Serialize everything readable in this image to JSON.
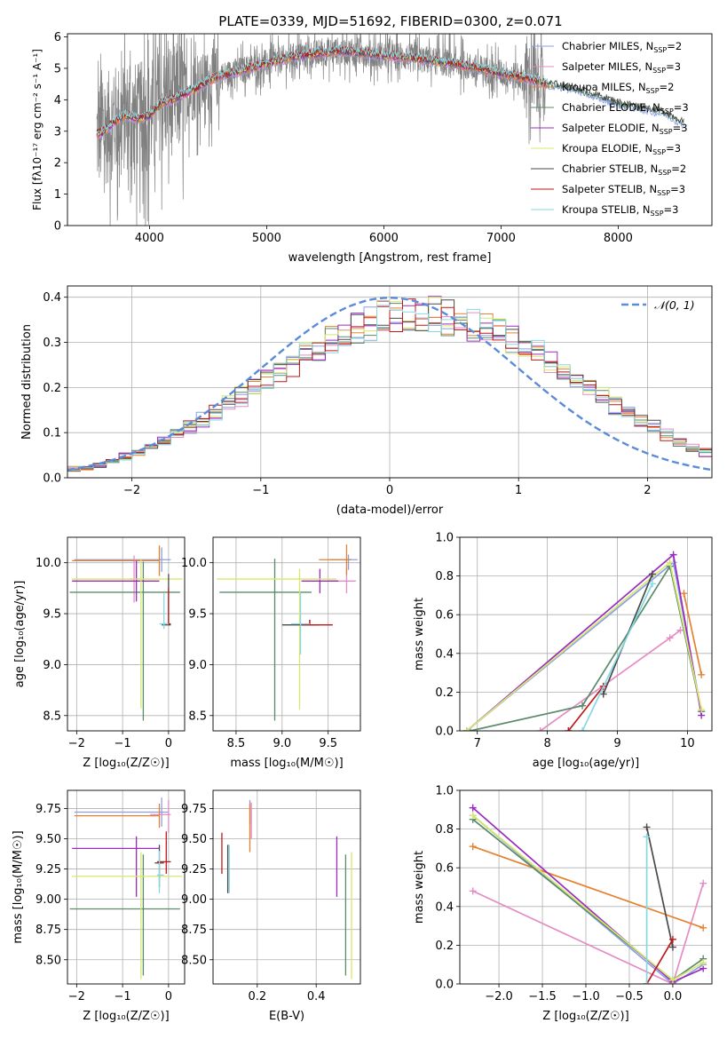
{
  "figure": {
    "title": "PLATE=0339, MJD=51692, FIBERID=0300, z=0.071"
  },
  "colors": {
    "Chabrier MILES": "#8a9fe6",
    "Salpeter MILES": "#e58cc4",
    "Kroupa MILES": "#e5812f",
    "Chabrier ELODIE": "#5a8a6a",
    "Salpeter ELODIE": "#9b2bbf",
    "Kroupa ELODIE": "#d6e86b",
    "Chabrier STELIB": "#4a4a4a",
    "Salpeter STELIB": "#c01818",
    "Kroupa STELIB": "#86d8e2",
    "normal": "#5b8bd9",
    "data": "#808080"
  },
  "chart_data": [
    {
      "id": "spectrum",
      "type": "line",
      "xlabel": "wavelength [Angstrom, rest frame]",
      "ylabel": "Flux [fλ10⁻¹⁷ erg cm⁻² s⁻¹ A⁻¹]",
      "xlim": [
        3300,
        8800
      ],
      "ylim": [
        0,
        6.1
      ],
      "xticks": [
        "4000",
        "5000",
        "6000",
        "7000",
        "8000"
      ],
      "yticks": [
        "0",
        "1",
        "2",
        "3",
        "4",
        "5",
        "6"
      ],
      "legend": [
        "Chabrier MILES, N_SSP=2",
        "Salpeter MILES, N_SSP=3",
        "Kroupa MILES, N_SSP=2",
        "Chabrier ELODIE, N_SSP=3",
        "Salpeter ELODIE, N_SSP=3",
        "Kroupa ELODIE, N_SSP=3",
        "Chabrier STELIB, N_SSP=2",
        "Salpeter STELIB, N_SSP=3",
        "Kroupa STELIB, N_SSP=3"
      ],
      "legend_placement": "right",
      "model_continuum": {
        "x": [
          3550,
          3600,
          3700,
          3800,
          3900,
          4000,
          4100,
          4200,
          4300,
          4400,
          4500,
          4600,
          4800,
          5000,
          5200,
          5400,
          5600,
          5800,
          6000,
          6200,
          6400,
          6600,
          6800,
          7000,
          7200,
          7400,
          7600,
          7800,
          8000,
          8200,
          8400,
          8560
        ],
        "y": [
          2.9,
          2.95,
          3.3,
          3.5,
          3.4,
          3.5,
          3.9,
          4.0,
          4.2,
          4.35,
          4.6,
          4.75,
          4.95,
          5.15,
          5.35,
          5.45,
          5.55,
          5.5,
          5.4,
          5.35,
          5.25,
          5.15,
          5.0,
          4.85,
          4.7,
          4.5,
          4.4,
          4.15,
          3.9,
          3.75,
          3.6,
          3.25
        ]
      }
    },
    {
      "id": "residuals",
      "type": "line",
      "xlabel": "(data-model)/error",
      "ylabel": "Normed distribution",
      "xlim": [
        -2.5,
        2.5
      ],
      "ylim": [
        0,
        0.425
      ],
      "xticks": [
        "−2",
        "−1",
        "0",
        "1",
        "2"
      ],
      "yticks": [
        "0.0",
        "0.1",
        "0.2",
        "0.3",
        "0.4"
      ],
      "legend": [
        "𝒩(0, 1)"
      ],
      "legend_placement": "top-right",
      "bin_width": 0.1,
      "histogram_base": [
        0.02,
        0.022,
        0.028,
        0.036,
        0.046,
        0.057,
        0.068,
        0.081,
        0.096,
        0.112,
        0.128,
        0.145,
        0.162,
        0.18,
        0.199,
        0.218,
        0.237,
        0.256,
        0.274,
        0.292,
        0.308,
        0.322,
        0.334,
        0.344,
        0.352,
        0.357,
        0.36,
        0.361,
        0.36,
        0.357,
        0.352,
        0.344,
        0.334,
        0.322,
        0.308,
        0.292,
        0.274,
        0.256,
        0.237,
        0.218,
        0.199,
        0.18,
        0.162,
        0.145,
        0.128,
        0.112,
        0.096,
        0.081,
        0.068,
        0.057
      ]
    },
    {
      "id": "age-vs-Z",
      "type": "errorbar",
      "xlabel": "Z [log₁₀(Z/Z☉)]",
      "ylabel": "age  [log₁₀(age/yr)]",
      "xlim": [
        -2.2,
        0.35
      ],
      "ylim": [
        8.35,
        10.25
      ],
      "xticks": [
        "−2",
        "−1",
        "0"
      ],
      "yticks": [
        "8.5",
        "9.0",
        "9.5",
        "10.0"
      ],
      "bars": [
        {
          "x": -0.15,
          "y": 10.03,
          "xerr": [
            1.9,
            0.2
          ],
          "yerr": [
            0.12,
            0.12
          ]
        },
        {
          "x": -0.75,
          "y": 9.84,
          "xerr": [
            0.1,
            0.1
          ],
          "yerr": [
            0.23,
            0.23
          ]
        },
        {
          "x": -0.2,
          "y": 10.02,
          "xerr": [
            1.9,
            0.0
          ],
          "yerr": [
            0.15,
            0.15
          ]
        },
        {
          "x": -0.55,
          "y": 9.71,
          "xerr": [
            1.6,
            0.8
          ],
          "yerr": [
            1.26,
            0.3
          ]
        },
        {
          "x": -0.7,
          "y": 9.82,
          "xerr": [
            1.4,
            0.5
          ],
          "yerr": [
            0.2,
            0.2
          ]
        },
        {
          "x": -0.6,
          "y": 9.84,
          "xerr": [
            1.5,
            0.9
          ],
          "yerr": [
            1.27,
            0.2
          ]
        },
        {
          "x": 0.0,
          "y": 9.39,
          "xerr": [
            0.15,
            0.05
          ],
          "yerr": [
            0.0,
            0.5
          ]
        },
        {
          "x": 0.0,
          "y": 9.4,
          "xerr": [
            0.1,
            0.05
          ],
          "yerr": [
            0.0,
            0.35
          ]
        },
        {
          "x": -0.1,
          "y": 9.4,
          "xerr": [
            0.1,
            0.1
          ],
          "yerr": [
            0.05,
            0.3
          ]
        }
      ]
    },
    {
      "id": "age-vs-mass",
      "type": "errorbar",
      "xlabel": "mass [log₁₀(M/M☉)]",
      "ylabel": "",
      "xlim": [
        8.25,
        9.85
      ],
      "ylim": [
        8.35,
        10.25
      ],
      "xticks": [
        "8.5",
        "9.0",
        "9.5"
      ],
      "yticks": [
        "8.5",
        "9.0",
        "9.5",
        "10.0"
      ],
      "bars": [
        {
          "x": 9.72,
          "y": 10.03,
          "xerr": [
            0.2,
            0.1
          ],
          "yerr": [
            0.1,
            0.05
          ]
        },
        {
          "x": 9.7,
          "y": 9.82,
          "xerr": [
            0.2,
            0.1
          ],
          "yerr": [
            0.12,
            0.12
          ]
        },
        {
          "x": 9.7,
          "y": 10.03,
          "xerr": [
            0.3,
            0.05
          ],
          "yerr": [
            0.15,
            0.15
          ]
        },
        {
          "x": 8.92,
          "y": 9.71,
          "xerr": [
            0.6,
            0.4
          ],
          "yerr": [
            1.26,
            0.33
          ]
        },
        {
          "x": 9.41,
          "y": 9.82,
          "xerr": [
            0.2,
            0.2
          ],
          "yerr": [
            0.12,
            0.12
          ]
        },
        {
          "x": 9.19,
          "y": 9.84,
          "xerr": [
            0.9,
            0.4
          ],
          "yerr": [
            1.28,
            0.1
          ]
        },
        {
          "x": 9.3,
          "y": 9.39,
          "xerr": [
            0.3,
            0.1
          ],
          "yerr": [
            0.0,
            0.05
          ]
        },
        {
          "x": 9.3,
          "y": 9.39,
          "xerr": [
            0.1,
            0.25
          ],
          "yerr": [
            0.0,
            0.05
          ]
        },
        {
          "x": 9.2,
          "y": 9.4,
          "xerr": [
            0.1,
            0.1
          ],
          "yerr": [
            0.3,
            0.3
          ]
        }
      ]
    },
    {
      "id": "weight-vs-age",
      "type": "line",
      "xlabel": "age  [log₁₀(age/yr)]",
      "ylabel": "mass weight",
      "xlim": [
        6.75,
        10.35
      ],
      "ylim": [
        0,
        1.0
      ],
      "xticks": [
        "7",
        "8",
        "9",
        "10"
      ],
      "yticks": [
        "0.0",
        "0.2",
        "0.4",
        "0.6",
        "0.8",
        "1.0"
      ],
      "series": [
        {
          "key": "Chabrier MILES",
          "x": [
            6.85,
            9.8,
            10.2
          ],
          "y": [
            0.0,
            0.87,
            0.1
          ]
        },
        {
          "key": "Salpeter MILES",
          "x": [
            7.9,
            9.75,
            9.9
          ],
          "y": [
            0.0,
            0.48,
            0.52
          ]
        },
        {
          "key": "Kroupa MILES",
          "x": [
            9.95,
            10.2
          ],
          "y": [
            0.71,
            0.29
          ]
        },
        {
          "key": "Chabrier ELODIE",
          "x": [
            6.9,
            8.5,
            9.75,
            10.2
          ],
          "y": [
            0.0,
            0.13,
            0.85,
            0.1
          ]
        },
        {
          "key": "Salpeter ELODIE",
          "x": [
            6.85,
            9.8,
            10.2
          ],
          "y": [
            0.0,
            0.91,
            0.08
          ]
        },
        {
          "key": "Kroupa ELODIE",
          "x": [
            6.85,
            9.75,
            10.2
          ],
          "y": [
            0.0,
            0.87,
            0.11
          ]
        },
        {
          "key": "Chabrier STELIB",
          "x": [
            8.8,
            9.5
          ],
          "y": [
            0.19,
            0.81
          ]
        },
        {
          "key": "Salpeter STELIB",
          "x": [
            8.3,
            8.8
          ],
          "y": [
            0.0,
            0.23
          ]
        },
        {
          "key": "Kroupa STELIB",
          "x": [
            8.5,
            9.5
          ],
          "y": [
            0.0,
            0.76
          ]
        }
      ]
    },
    {
      "id": "mass-vs-Z",
      "type": "errorbar",
      "xlabel": "Z [log₁₀(Z/Z☉)]",
      "ylabel": "mass [log₁₀(M/M☉)]",
      "xlim": [
        -2.2,
        0.35
      ],
      "ylim": [
        8.3,
        9.9
      ],
      "xticks": [
        "−2",
        "−1",
        "0"
      ],
      "yticks": [
        "8.50",
        "8.75",
        "9.00",
        "9.25",
        "9.50",
        "9.75"
      ],
      "bars": [
        {
          "x": -0.15,
          "y": 9.72,
          "xerr": [
            1.9,
            0.15
          ],
          "yerr": [
            0.12,
            0.12
          ]
        },
        {
          "x": 0.0,
          "y": 9.7,
          "xerr": [
            0.4,
            0.05
          ],
          "yerr": [
            0.15,
            0.12
          ]
        },
        {
          "x": -0.2,
          "y": 9.69,
          "xerr": [
            1.85,
            0.0
          ],
          "yerr": [
            0.1,
            0.1
          ]
        },
        {
          "x": -0.55,
          "y": 8.92,
          "xerr": [
            1.6,
            0.8
          ],
          "yerr": [
            0.55,
            0.45
          ]
        },
        {
          "x": -0.7,
          "y": 9.42,
          "xerr": [
            1.4,
            0.5
          ],
          "yerr": [
            0.4,
            0.1
          ]
        },
        {
          "x": -0.6,
          "y": 9.19,
          "xerr": [
            1.5,
            0.9
          ],
          "yerr": [
            0.85,
            0.2
          ]
        },
        {
          "x": -0.2,
          "y": 9.3,
          "xerr": [
            0.1,
            0.1
          ],
          "yerr": [
            0.2,
            0.15
          ]
        },
        {
          "x": -0.05,
          "y": 9.31,
          "xerr": [
            0.2,
            0.1
          ],
          "yerr": [
            0.1,
            0.25
          ]
        },
        {
          "x": -0.2,
          "y": 9.2,
          "xerr": [
            0.05,
            0.1
          ],
          "yerr": [
            0.15,
            0.2
          ]
        }
      ]
    },
    {
      "id": "mass-vs-EBV",
      "type": "errorbar",
      "xlabel": "E(B-V)",
      "ylabel": "",
      "xlim": [
        0.05,
        0.55
      ],
      "ylim": [
        8.3,
        9.9
      ],
      "xticks": [
        "0.2",
        "0.4"
      ],
      "yticks": [
        "8.50",
        "8.75",
        "9.00",
        "9.25",
        "9.50",
        "9.75"
      ],
      "bars": [
        {
          "x": 0.175,
          "y": 9.72,
          "xerr": [
            0,
            0
          ],
          "yerr": [
            0.1,
            0.1
          ]
        },
        {
          "x": 0.18,
          "y": 9.6,
          "xerr": [
            0,
            0
          ],
          "yerr": [
            0.1,
            0.2
          ]
        },
        {
          "x": 0.175,
          "y": 9.64,
          "xerr": [
            0,
            0
          ],
          "yerr": [
            0.25,
            0.15
          ]
        },
        {
          "x": 0.5,
          "y": 8.92,
          "xerr": [
            0,
            0
          ],
          "yerr": [
            0.55,
            0.45
          ]
        },
        {
          "x": 0.47,
          "y": 9.42,
          "xerr": [
            0,
            0
          ],
          "yerr": [
            0.4,
            0.1
          ]
        },
        {
          "x": 0.52,
          "y": 9.19,
          "xerr": [
            0,
            0
          ],
          "yerr": [
            0.85,
            0.2
          ]
        },
        {
          "x": 0.1,
          "y": 9.25,
          "xerr": [
            0,
            0
          ],
          "yerr": [
            0.2,
            0.2
          ]
        },
        {
          "x": 0.08,
          "y": 9.38,
          "xerr": [
            0,
            0
          ],
          "yerr": [
            0.17,
            0.17
          ]
        },
        {
          "x": 0.105,
          "y": 9.25,
          "xerr": [
            0,
            0
          ],
          "yerr": [
            0.2,
            0.2
          ]
        }
      ]
    },
    {
      "id": "weight-vs-Z",
      "type": "line",
      "xlabel": "Z [log₁₀(Z/Z☉)]",
      "ylabel": "mass weight",
      "xlim": [
        -2.45,
        0.45
      ],
      "ylim": [
        0,
        1.0
      ],
      "xticks": [
        "−2.0",
        "−1.5",
        "−1.0",
        "−0.5",
        "0.0"
      ],
      "yticks": [
        "0.0",
        "0.2",
        "0.4",
        "0.6",
        "0.8",
        "1.0"
      ],
      "series": [
        {
          "key": "Chabrier MILES",
          "x": [
            -2.3,
            0.0,
            0.35
          ],
          "y": [
            0.87,
            0.0,
            0.1
          ]
        },
        {
          "key": "Salpeter MILES",
          "x": [
            -2.3,
            0.0,
            0.35
          ],
          "y": [
            0.48,
            0.0,
            0.52
          ]
        },
        {
          "key": "Kroupa MILES",
          "x": [
            -2.3,
            0.35
          ],
          "y": [
            0.71,
            0.29
          ]
        },
        {
          "key": "Chabrier ELODIE",
          "x": [
            -2.3,
            0.0,
            0.35
          ],
          "y": [
            0.85,
            0.02,
            0.13
          ]
        },
        {
          "key": "Salpeter ELODIE",
          "x": [
            -2.3,
            0.0,
            0.35
          ],
          "y": [
            0.91,
            0.01,
            0.08
          ]
        },
        {
          "key": "Kroupa ELODIE",
          "x": [
            -2.3,
            0.0,
            0.35
          ],
          "y": [
            0.87,
            0.02,
            0.11
          ]
        },
        {
          "key": "Chabrier STELIB",
          "x": [
            -0.3,
            0.0
          ],
          "y": [
            0.81,
            0.19
          ]
        },
        {
          "key": "Salpeter STELIB",
          "x": [
            -0.3,
            0.0
          ],
          "y": [
            0.0,
            0.23
          ]
        },
        {
          "key": "Kroupa STELIB",
          "x": [
            -0.3,
            -0.3
          ],
          "y": [
            0.0,
            0.76
          ]
        }
      ]
    }
  ]
}
